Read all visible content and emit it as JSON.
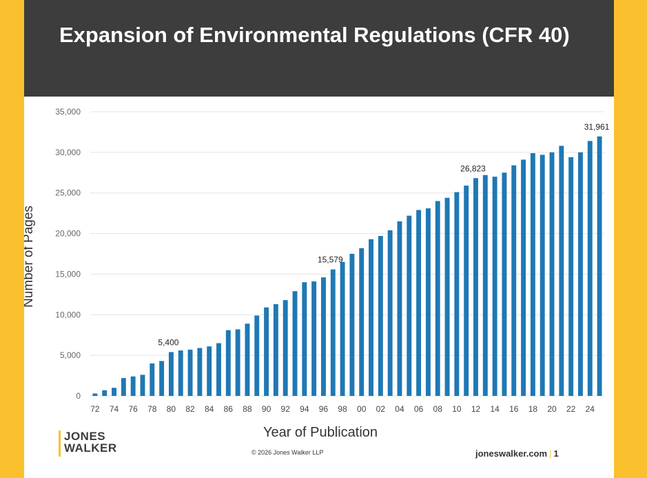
{
  "header": {
    "title": "Expansion of Environmental Regulations (CFR 40)"
  },
  "footer": {
    "logo_line1": "JONES",
    "logo_line2": "WALKER",
    "copyright": "© 2026 Jones Walker LLP",
    "site": "joneswalker.com",
    "separator": "|",
    "page": "1"
  },
  "colors": {
    "bar": "#1f78b4",
    "header_bg": "#3d3d3d",
    "accent": "#fbc02d"
  },
  "chart_data": {
    "type": "bar",
    "title": "Expansion of Environmental Regulations (CFR 40)",
    "xlabel": "Year of Publication",
    "ylabel": "Number of Pages",
    "ylim": [
      0,
      35000
    ],
    "yticks": [
      0,
      5000,
      10000,
      15000,
      20000,
      25000,
      30000,
      35000
    ],
    "ytick_labels": [
      "0",
      "5,000",
      "10,000",
      "15,000",
      "20,000",
      "25,000",
      "30,000",
      "35,000"
    ],
    "grid": true,
    "categories": [
      "72",
      "73",
      "74",
      "75",
      "76",
      "77",
      "78",
      "79",
      "80",
      "81",
      "82",
      "83",
      "84",
      "85",
      "86",
      "87",
      "88",
      "89",
      "90",
      "91",
      "92",
      "93",
      "94",
      "95",
      "96",
      "97",
      "98",
      "99",
      "00",
      "01",
      "02",
      "03",
      "04",
      "05",
      "06",
      "07",
      "08",
      "09",
      "10",
      "11",
      "12",
      "13",
      "14",
      "15",
      "16",
      "17",
      "18",
      "19",
      "20",
      "21",
      "22",
      "23",
      "24",
      "25"
    ],
    "tick_labels": [
      "72",
      "74",
      "76",
      "78",
      "80",
      "82",
      "84",
      "86",
      "88",
      "90",
      "92",
      "94",
      "96",
      "98",
      "00",
      "02",
      "04",
      "06",
      "08",
      "10",
      "12",
      "14",
      "16",
      "18",
      "20",
      "22",
      "24"
    ],
    "values": [
      300,
      700,
      1000,
      2200,
      2400,
      2600,
      4000,
      4300,
      5400,
      5600,
      5700,
      5900,
      6100,
      6500,
      8100,
      8200,
      8900,
      9900,
      10900,
      11300,
      11800,
      12900,
      14000,
      14100,
      14600,
      15579,
      16500,
      17500,
      18200,
      19300,
      19700,
      20400,
      21500,
      22200,
      22900,
      23100,
      24000,
      24400,
      25100,
      25900,
      26823,
      27200,
      27000,
      27500,
      28400,
      29100,
      29900,
      29700,
      30000,
      30800,
      29400,
      30000,
      31400,
      31961
    ],
    "annotations": [
      {
        "category": "80",
        "label": "5,400"
      },
      {
        "category": "97",
        "label": "15,579"
      },
      {
        "category": "12",
        "label": "26,823"
      },
      {
        "category": "25",
        "label": "31,961"
      }
    ]
  }
}
